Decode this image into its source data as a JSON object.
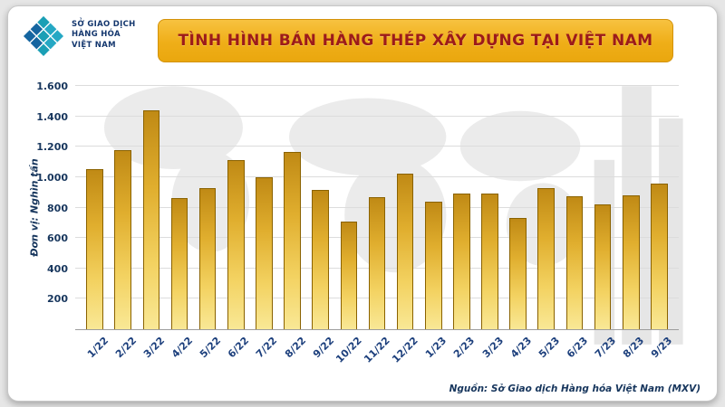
{
  "title": "TÌNH HÌNH BÁN HÀNG THÉP XÂY DỰNG TẠI VIỆT NAM",
  "logo": {
    "line1": "SỞ GIAO DỊCH",
    "line2": "HÀNG HÓA",
    "line3": "VIỆT NAM"
  },
  "source": "Nguồn: Sở Giao dịch Hàng hóa Việt Nam (MXV)",
  "colors": {
    "banner_gold": "#efae18",
    "title_red": "#9c1b1b",
    "bar_top": "#c08a15",
    "bar_bottom": "#f9e896",
    "bar_border": "#8a6200",
    "axis_text_navy": "#17365d",
    "logo_teal": "#1a9fb5",
    "logo_blue": "#1565a0"
  },
  "chart_data": {
    "type": "bar",
    "title": "TÌNH HÌNH BÁN HÀNG THÉP XÂY DỰNG TẠI VIỆT NAM",
    "ylabel": "Đơn vị: Nghìn tấn",
    "xlabel": "",
    "ylim": [
      0,
      1600
    ],
    "grid": true,
    "legend": "none",
    "categories": [
      "1/22",
      "2/22",
      "3/22",
      "4/22",
      "5/22",
      "6/22",
      "7/22",
      "8/22",
      "9/22",
      "10/22",
      "11/22",
      "12/22",
      "1/23",
      "2/23",
      "3/23",
      "4/23",
      "5/23",
      "6/23",
      "7/23",
      "8/23",
      "9/23"
    ],
    "values": [
      1050,
      1175,
      1440,
      860,
      925,
      1110,
      1000,
      1165,
      915,
      710,
      870,
      1025,
      840,
      895,
      890,
      730,
      930,
      875,
      820,
      880,
      955
    ],
    "yticks": [
      {
        "value": 200,
        "label": "200"
      },
      {
        "value": 400,
        "label": "400"
      },
      {
        "value": 600,
        "label": "600"
      },
      {
        "value": 800,
        "label": "800"
      },
      {
        "value": 1000,
        "label": "1.000"
      },
      {
        "value": 1200,
        "label": "1.200"
      },
      {
        "value": 1400,
        "label": "1.400"
      },
      {
        "value": 1600,
        "label": "1.600"
      }
    ]
  }
}
